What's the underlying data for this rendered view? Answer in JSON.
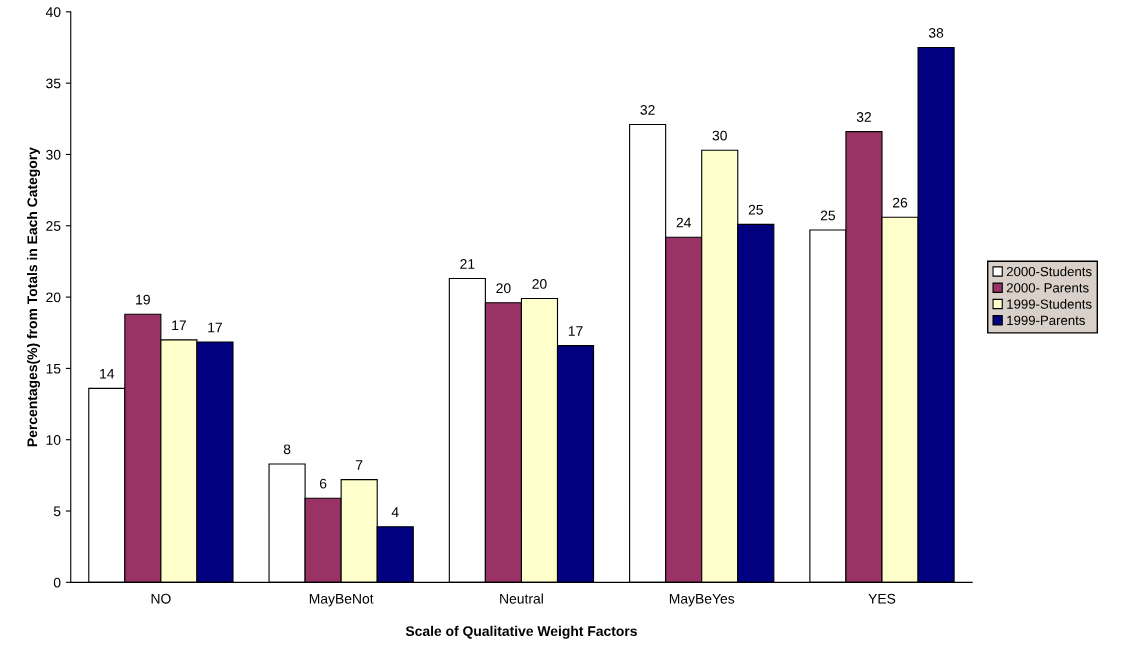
{
  "chart_data": {
    "type": "bar",
    "xlabel": "Scale of Qualitative Weight Factors",
    "ylabel": "Percentages(%) from Totals in Each Category",
    "categories": [
      "NO",
      "MayBeNot",
      "Neutral",
      "MayBeYes",
      "YES"
    ],
    "series": [
      {
        "name": "2000-Students",
        "color": "#ffffff",
        "values": [
          13.6,
          8.3,
          21.3,
          32.1,
          24.7
        ],
        "value_labels": [
          "14",
          "8",
          "21",
          "32",
          "25"
        ]
      },
      {
        "name": "2000- Parents",
        "color": "#993366",
        "values": [
          18.8,
          5.9,
          19.6,
          24.2,
          31.6
        ],
        "value_labels": [
          "19",
          "6",
          "20",
          "24",
          "32"
        ]
      },
      {
        "name": "1999-Students",
        "color": "#ffffcc",
        "values": [
          17.0,
          7.2,
          19.9,
          30.3,
          25.6
        ],
        "value_labels": [
          "17",
          "7",
          "20",
          "30",
          "26"
        ]
      },
      {
        "name": "1999-Parents",
        "color": "#000080",
        "values": [
          16.85,
          3.9,
          16.6,
          25.1,
          37.5
        ],
        "value_labels": [
          "17",
          "4",
          "17",
          "25",
          "38"
        ]
      }
    ],
    "ylim": [
      0,
      40
    ],
    "yticks": [
      0,
      5,
      10,
      15,
      20,
      25,
      30,
      35,
      40
    ],
    "grid": false,
    "legend": "right"
  }
}
